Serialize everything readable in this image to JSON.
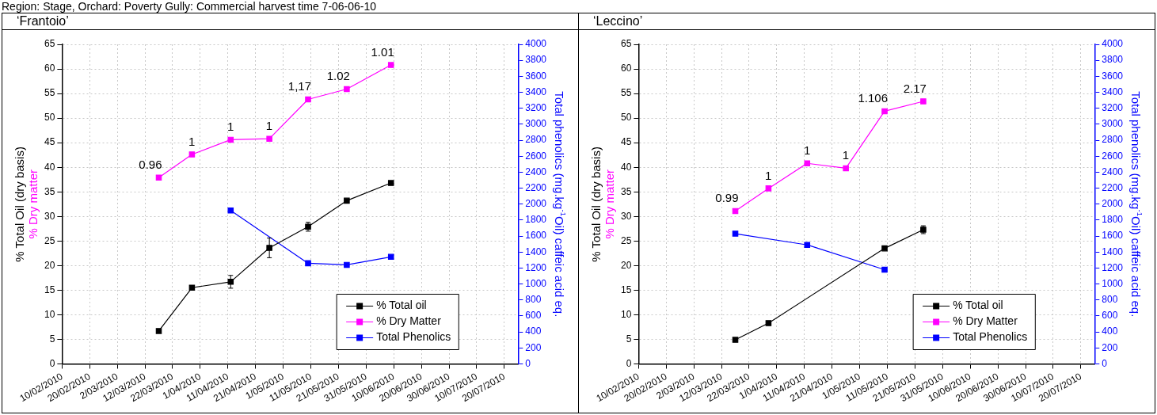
{
  "chart_data": [
    {
      "type": "line",
      "title": "‘Frantoio’",
      "annotations": [
        "Region: Stage, Orchard: Poverty Gully: Commercial harvest time 7-06-06-10",
        {
          "text": "0.96",
          "x": "2010-03-17",
          "y": 37.9
        },
        {
          "text": "1",
          "x": "2010-03-29",
          "y": 42.6
        },
        {
          "text": "1",
          "x": "2010-04-12",
          "y": 45.6
        },
        {
          "text": "1",
          "x": "2010-04-26",
          "y": 45.8
        },
        {
          "text": "1,17",
          "x": "2010-05-10",
          "y": 53.8
        },
        {
          "text": "1.02",
          "x": "2010-05-24",
          "y": 55.9
        },
        {
          "text": "1.01",
          "x": "2010-06-09",
          "y": 60.8
        }
      ],
      "ylabel": "% Total Oil (dry basis)\n% Dry matter",
      "y2label": "Total phenolics (mg.kg$^{-1}$Oil) caffeic acid eq.",
      "xlim": [
        "2010-02-10",
        "2010-07-25"
      ],
      "xticks": [
        {
          "value": "2010-02-10",
          "label": "10/02/2010"
        },
        {
          "value": "2010-02-20",
          "label": "20/02/2010"
        },
        {
          "value": "2010-03-02",
          "label": "2/03/2010"
        },
        {
          "value": "2010-03-12",
          "label": "12/03/2010"
        },
        {
          "value": "2010-03-22",
          "label": "22/03/2010"
        },
        {
          "value": "2010-04-01",
          "label": "1/04/2010"
        },
        {
          "value": "2010-04-11",
          "label": "11/04/2010"
        },
        {
          "value": "2010-04-21",
          "label": "21/04/2010"
        },
        {
          "value": "2010-05-01",
          "label": "1/05/2010"
        },
        {
          "value": "2010-05-11",
          "label": "11/05/2010"
        },
        {
          "value": "2010-05-21",
          "label": "21/05/2010"
        },
        {
          "value": "2010-05-31",
          "label": "31/05/2010"
        },
        {
          "value": "2010-06-10",
          "label": "10/06/2010"
        },
        {
          "value": "2010-06-20",
          "label": "20/06/2010"
        },
        {
          "value": "2010-06-30",
          "label": "30/06/2010"
        },
        {
          "value": "2010-07-10",
          "label": "10/07/2010"
        },
        {
          "value": "2010-07-20",
          "label": "20/07/2010"
        }
      ],
      "ylim": [
        0,
        65
      ],
      "yticks": [
        0,
        5,
        10,
        15,
        20,
        25,
        30,
        35,
        40,
        45,
        50,
        55,
        60,
        65
      ],
      "y2lim": [
        0,
        4000
      ],
      "y2ticks": [
        0,
        200,
        400,
        600,
        800,
        1000,
        1200,
        1400,
        1600,
        1800,
        2000,
        2200,
        2400,
        2600,
        2800,
        3000,
        3200,
        3400,
        3600,
        3800,
        4000
      ],
      "grid": true,
      "legend": "bottom right",
      "marker": "square",
      "series": [
        {
          "name": "% Total oil",
          "color": "#000000",
          "x": [
            "2010-03-17",
            "2010-03-29",
            "2010-04-12",
            "2010-04-26",
            "2010-05-10",
            "2010-05-24",
            "2010-06-09"
          ],
          "values": [
            6.7,
            15.5,
            16.7,
            23.6,
            27.9,
            33.2,
            36.8
          ],
          "errors": [
            null,
            null,
            1.3,
            2.0,
            0.9,
            null,
            null
          ]
        },
        {
          "name": "% Dry Matter",
          "color": "#ff00ff",
          "x": [
            "2010-03-17",
            "2010-03-29",
            "2010-04-12",
            "2010-04-26",
            "2010-05-10",
            "2010-05-24",
            "2010-06-09"
          ],
          "values": [
            37.9,
            42.6,
            45.6,
            45.8,
            53.8,
            55.9,
            60.8
          ]
        },
        {
          "name": "Total Phenolics",
          "color": "#0000ff",
          "axis": "y2",
          "x": [
            "2010-04-12",
            "2010-05-10",
            "2010-05-24",
            "2010-06-09"
          ],
          "values": [
            1920,
            1260,
            1240,
            1340
          ]
        }
      ]
    },
    {
      "type": "line",
      "title": "‘Leccino’",
      "annotations": [
        {
          "text": "0.99",
          "x": "2010-03-17",
          "y": 31.1
        },
        {
          "text": "1",
          "x": "2010-03-29",
          "y": 35.7
        },
        {
          "text": "1",
          "x": "2010-04-12",
          "y": 40.8
        },
        {
          "text": "1",
          "x": "2010-04-26",
          "y": 39.8
        },
        {
          "text": "1.106",
          "x": "2010-05-10",
          "y": 51.4
        },
        {
          "text": "2.17",
          "x": "2010-05-24",
          "y": 53.4
        }
      ],
      "ylabel": "% Total Oil (dry basis)\n% Dry matter",
      "y2label": "Total phenolics (mg.kg$^{-1}$Oil) caffeic acid eq.",
      "xlim": [
        "2010-02-10",
        "2010-07-25"
      ],
      "xticks": [
        {
          "value": "2010-02-10",
          "label": "10/02/2010"
        },
        {
          "value": "2010-02-20",
          "label": "20/02/2010"
        },
        {
          "value": "2010-03-02",
          "label": "2/03/2010"
        },
        {
          "value": "2010-03-12",
          "label": "12/03/2010"
        },
        {
          "value": "2010-03-22",
          "label": "22/03/2010"
        },
        {
          "value": "2010-04-01",
          "label": "1/04/2010"
        },
        {
          "value": "2010-04-11",
          "label": "11/04/2010"
        },
        {
          "value": "2010-04-21",
          "label": "21/04/2010"
        },
        {
          "value": "2010-05-01",
          "label": "1/05/2010"
        },
        {
          "value": "2010-05-11",
          "label": "11/05/2010"
        },
        {
          "value": "2010-05-21",
          "label": "21/05/2010"
        },
        {
          "value": "2010-05-31",
          "label": "31/05/2010"
        },
        {
          "value": "2010-06-10",
          "label": "10/06/2010"
        },
        {
          "value": "2010-06-20",
          "label": "20/06/2010"
        },
        {
          "value": "2010-06-30",
          "label": "30/06/2010"
        },
        {
          "value": "2010-07-10",
          "label": "10/07/2010"
        },
        {
          "value": "2010-07-20",
          "label": "20/07/2010"
        }
      ],
      "ylim": [
        0,
        65
      ],
      "yticks": [
        0,
        5,
        10,
        15,
        20,
        25,
        30,
        35,
        40,
        45,
        50,
        55,
        60,
        65
      ],
      "y2lim": [
        0,
        4000
      ],
      "y2ticks": [
        0,
        200,
        400,
        600,
        800,
        1000,
        1200,
        1400,
        1600,
        1800,
        2000,
        2200,
        2400,
        2600,
        2800,
        3000,
        3200,
        3400,
        3600,
        3800,
        4000
      ],
      "grid": true,
      "legend": "bottom right",
      "marker": "square",
      "series": [
        {
          "name": "% Total oil",
          "color": "#000000",
          "x": [
            "2010-03-17",
            "2010-03-29",
            "2010-05-10",
            "2010-05-24"
          ],
          "values": [
            4.9,
            8.3,
            23.5,
            27.3
          ],
          "errors": [
            null,
            null,
            null,
            0.8
          ]
        },
        {
          "name": "% Dry Matter",
          "color": "#ff00ff",
          "x": [
            "2010-03-17",
            "2010-03-29",
            "2010-04-12",
            "2010-04-26",
            "2010-05-10",
            "2010-05-24"
          ],
          "values": [
            31.1,
            35.7,
            40.8,
            39.8,
            51.4,
            53.4
          ]
        },
        {
          "name": "Total Phenolics",
          "color": "#0000ff",
          "axis": "y2",
          "x": [
            "2010-03-17",
            "2010-04-12",
            "2010-05-10"
          ],
          "values": [
            1630,
            1490,
            1180
          ]
        }
      ]
    }
  ]
}
